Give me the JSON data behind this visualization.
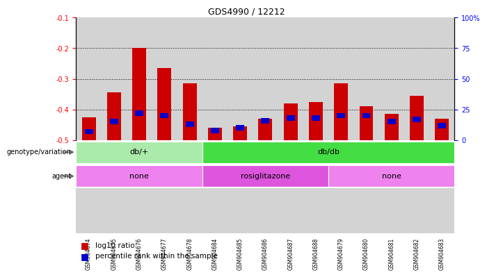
{
  "title": "GDS4990 / 12212",
  "samples": [
    "GSM904674",
    "GSM904675",
    "GSM904676",
    "GSM904677",
    "GSM904678",
    "GSM904684",
    "GSM904685",
    "GSM904686",
    "GSM904687",
    "GSM904688",
    "GSM904679",
    "GSM904680",
    "GSM904681",
    "GSM904682",
    "GSM904683"
  ],
  "log10_ratio": [
    -0.425,
    -0.345,
    -0.2,
    -0.265,
    -0.315,
    -0.46,
    -0.455,
    -0.43,
    -0.38,
    -0.375,
    -0.315,
    -0.39,
    -0.415,
    -0.355,
    -0.43
  ],
  "percentile_rank": [
    7,
    15,
    22,
    20,
    13,
    8,
    10,
    16,
    18,
    18,
    20,
    20,
    15,
    17,
    12
  ],
  "ylim_left": [
    -0.5,
    -0.1
  ],
  "ylim_right": [
    0,
    100
  ],
  "yticks_left": [
    -0.5,
    -0.4,
    -0.3,
    -0.2,
    -0.1
  ],
  "yticks_right": [
    0,
    25,
    50,
    75,
    100
  ],
  "bar_color": "#cc0000",
  "blue_color": "#0000cc",
  "plot_bg": "#ffffff",
  "col_bg": "#d3d3d3",
  "genotype_groups": [
    {
      "label": "db/+",
      "start": 0,
      "end": 5,
      "color": "#aaeaaa"
    },
    {
      "label": "db/db",
      "start": 5,
      "end": 15,
      "color": "#44dd44"
    }
  ],
  "agent_groups": [
    {
      "label": "none",
      "start": 0,
      "end": 5,
      "color": "#ee82ee"
    },
    {
      "label": "rosiglitazone",
      "start": 5,
      "end": 10,
      "color": "#dd55dd"
    },
    {
      "label": "none",
      "start": 10,
      "end": 15,
      "color": "#ee82ee"
    }
  ],
  "title_fontsize": 9,
  "tick_fontsize": 7,
  "label_fontsize": 7,
  "bar_width": 0.55
}
